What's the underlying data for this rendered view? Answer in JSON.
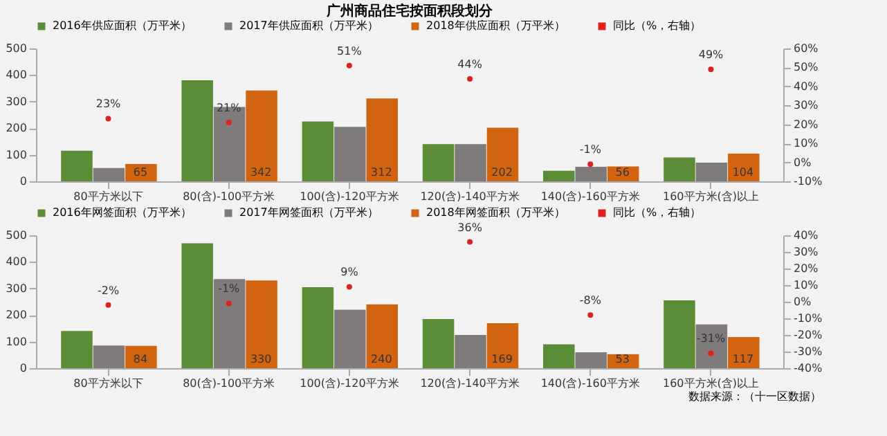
{
  "chart_data": [
    {
      "type": "bar",
      "title": "广州商品住宅按面积段划分",
      "legend": "top",
      "grid": false,
      "categories": [
        "80平方米以下",
        "80(含)-100平方米",
        "100(含)-120平方米",
        "120(含)-140平方米",
        "140(含)-160平方米",
        "160平方米(含)以上"
      ],
      "series": [
        {
          "name": "2016年供应面积（万平米）",
          "color": "#5b8c36",
          "values": [
            115,
            380,
            225,
            140,
            40,
            90
          ]
        },
        {
          "name": "2017年供应面积（万平米）",
          "color": "#7f7b7b",
          "values": [
            50,
            280,
            205,
            140,
            55,
            70
          ]
        },
        {
          "name": "2018年供应面积（万平米）",
          "color": "#d2640f",
          "values": [
            65,
            342,
            312,
            202,
            56,
            104
          ],
          "value_labels": [
            "65",
            "342",
            "312",
            "202",
            "56",
            "104"
          ]
        },
        {
          "name": "同比（%，右轴）",
          "type": "scatter",
          "axis": "y2",
          "marker": "circle",
          "color": "#e0201b",
          "values": [
            23,
            21,
            51,
            44,
            -1,
            49
          ],
          "value_labels": [
            "23%",
            "21%",
            "51%",
            "44%",
            "-1%",
            "49%"
          ]
        }
      ],
      "ylim": [
        0,
        500
      ],
      "yticks": [
        0,
        100,
        200,
        300,
        400,
        500
      ],
      "y2lim": [
        -10,
        60
      ],
      "y2ticks": [
        {
          "value": -10,
          "label": "-10%"
        },
        {
          "value": 0,
          "label": "0%"
        },
        {
          "value": 10,
          "label": "10%"
        },
        {
          "value": 20,
          "label": "20%"
        },
        {
          "value": 30,
          "label": "30%"
        },
        {
          "value": 40,
          "label": "40%"
        },
        {
          "value": 50,
          "label": "50%"
        },
        {
          "value": 60,
          "label": "60%"
        }
      ]
    },
    {
      "type": "bar",
      "legend": "top",
      "grid": false,
      "categories": [
        "80平方米以下",
        "80(含)-100平方米",
        "100(含)-120平方米",
        "120(含)-140平方米",
        "140(含)-160平方米",
        "160平方米(含)以上"
      ],
      "series": [
        {
          "name": "2016年网签面积（万平米）",
          "color": "#5b8c36",
          "values": [
            140,
            470,
            305,
            185,
            90,
            255
          ]
        },
        {
          "name": "2017年网签面积（万平米）",
          "color": "#7f7b7b",
          "values": [
            85,
            335,
            220,
            125,
            60,
            165
          ]
        },
        {
          "name": "2018年网签面积（万平米）",
          "color": "#d2640f",
          "values": [
            84,
            330,
            240,
            169,
            53,
            117
          ],
          "value_labels": [
            "84",
            "330",
            "240",
            "169",
            "53",
            "117"
          ]
        },
        {
          "name": "同比（%，右轴）",
          "type": "scatter",
          "axis": "y2",
          "marker": "circle",
          "color": "#e0201b",
          "values": [
            -2,
            -1,
            9,
            36,
            -8,
            -31
          ],
          "value_labels": [
            "-2%",
            "-1%",
            "9%",
            "36%",
            "-8%",
            "-31%"
          ]
        }
      ],
      "ylim": [
        0,
        500
      ],
      "yticks": [
        0,
        100,
        200,
        300,
        400,
        500
      ],
      "y2lim": [
        -40,
        40
      ],
      "y2ticks": [
        {
          "value": -40,
          "label": "-40%"
        },
        {
          "value": -30,
          "label": "-30%"
        },
        {
          "value": -20,
          "label": "-20%"
        },
        {
          "value": -10,
          "label": "-10%"
        },
        {
          "value": 0,
          "label": "0%"
        },
        {
          "value": 10,
          "label": "10%"
        },
        {
          "value": 20,
          "label": "20%"
        },
        {
          "value": 30,
          "label": "30%"
        },
        {
          "value": 40,
          "label": "40%"
        }
      ],
      "annotations": [
        "数据来源：（十一区数据）"
      ]
    }
  ]
}
